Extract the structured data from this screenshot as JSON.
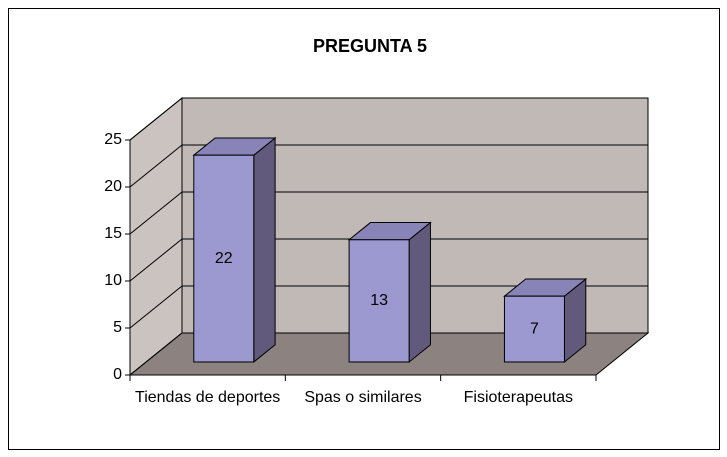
{
  "chart_data": {
    "type": "bar3d",
    "title": "PREGUNTA 5",
    "categories": [
      "Tiendas de deportes",
      "Spas o similares",
      "Fisioterapeutas"
    ],
    "values": [
      22,
      13,
      7
    ],
    "color": "#9b99cf",
    "ylim": [
      0,
      25
    ],
    "yticks": [
      0,
      5,
      10,
      15,
      20,
      25
    ],
    "grid": true
  }
}
